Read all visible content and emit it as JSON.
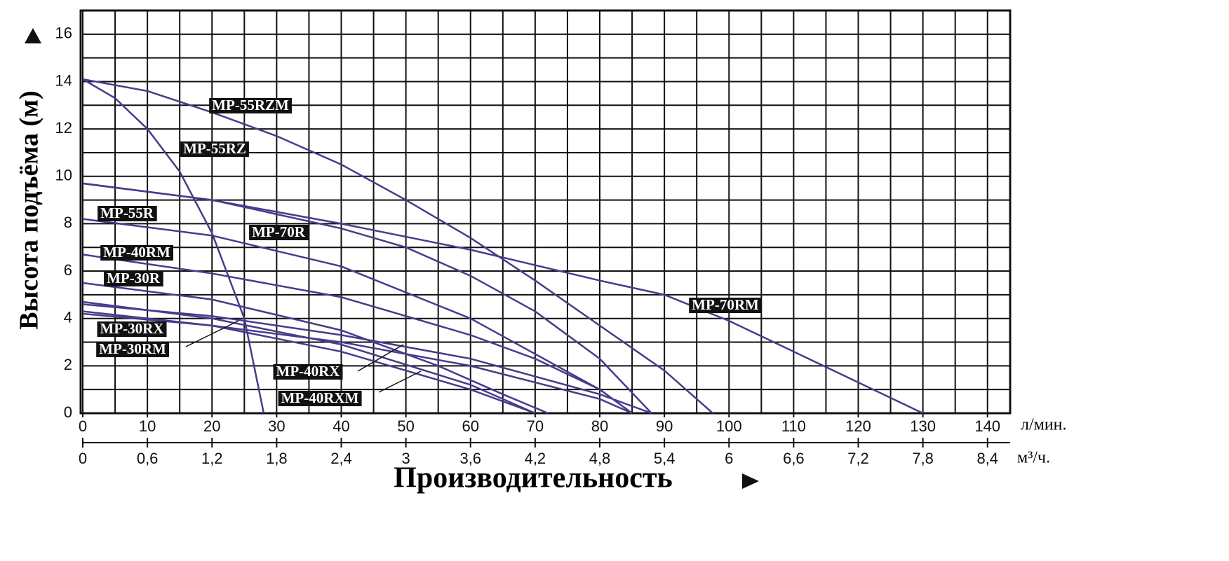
{
  "chart_data": {
    "type": "line",
    "y_label": "Высота подъёма (м)",
    "x_label": "Производительность",
    "x_unit": "л/мин.",
    "x2_unit": "м³/ч.",
    "xlim": [
      0,
      143.5
    ],
    "xticks": [
      0,
      10,
      20,
      30,
      40,
      50,
      60,
      70,
      80,
      90,
      100,
      110,
      120,
      130,
      140
    ],
    "x2lim": [
      0,
      8.61
    ],
    "x2ticks": [
      0,
      {
        "value": 0.6,
        "label": "0,6"
      },
      {
        "value": 1.2,
        "label": "1,2"
      },
      {
        "value": 1.8,
        "label": "1,8"
      },
      {
        "value": 2.4,
        "label": "2,4"
      },
      3,
      {
        "value": 3.6,
        "label": "3,6"
      },
      {
        "value": 4.2,
        "label": "4,2"
      },
      {
        "value": 4.8,
        "label": "4,8"
      },
      {
        "value": 5.4,
        "label": "5,4"
      },
      6,
      {
        "value": 6.6,
        "label": "6,6"
      },
      {
        "value": 7.2,
        "label": "7,2"
      },
      {
        "value": 7.8,
        "label": "7,8"
      },
      {
        "value": 8.4,
        "label": "8,4"
      }
    ],
    "ylim": [
      0,
      17
    ],
    "yticks": [
      0,
      2,
      4,
      6,
      8,
      10,
      12,
      14,
      16
    ],
    "grid": true,
    "x_grid_step": 5,
    "y_grid_step": 1,
    "series": [
      {
        "name": "MP-55RZM",
        "color": "#4b3a8c",
        "x": [
          0,
          10,
          20,
          30,
          40,
          50,
          60,
          70,
          80,
          90,
          97.5
        ],
        "values": [
          14.1,
          13.6,
          12.7,
          11.7,
          10.5,
          9.0,
          7.4,
          5.6,
          3.7,
          1.8,
          0
        ]
      },
      {
        "name": "MP-55RZ",
        "color": "#4b3a8c",
        "x": [
          0,
          5,
          10,
          15,
          20,
          25,
          28
        ],
        "values": [
          14.1,
          13.3,
          12.0,
          10.2,
          7.6,
          4.0,
          0
        ]
      },
      {
        "name": "MP-55R",
        "color": "#4b3a8c",
        "x": [
          0,
          20,
          40,
          60,
          70,
          80,
          85
        ],
        "values": [
          8.2,
          7.5,
          6.2,
          4.0,
          2.5,
          1.0,
          0
        ]
      },
      {
        "name": "MP-70R",
        "color": "#4b3a8c",
        "x": [
          0,
          20,
          40,
          50,
          60,
          70,
          80,
          88
        ],
        "values": [
          9.7,
          9.0,
          7.8,
          7.0,
          5.8,
          4.3,
          2.3,
          0
        ]
      },
      {
        "name": "MP-40RM",
        "color": "#4b3a8c",
        "x": [
          0,
          20,
          40,
          60,
          70,
          80,
          85
        ],
        "values": [
          6.7,
          5.9,
          4.9,
          3.3,
          2.3,
          1.0,
          0
        ]
      },
      {
        "name": "MP-30R",
        "color": "#4b3a8c",
        "x": [
          0,
          20,
          40,
          55,
          65,
          72
        ],
        "values": [
          5.5,
          4.8,
          3.5,
          2.0,
          0.8,
          0
        ]
      },
      {
        "name": "MP-30RX",
        "color": "#4b3a8c",
        "x": [
          0,
          20,
          40,
          60,
          70
        ],
        "values": [
          4.7,
          4.0,
          2.9,
          1.2,
          0
        ]
      },
      {
        "name": "MP-30RM",
        "color": "#4b3a8c",
        "x": [
          0,
          20,
          40,
          60,
          70
        ],
        "values": [
          4.3,
          3.7,
          2.6,
          1.0,
          0
        ]
      },
      {
        "name": "MP-40RX",
        "color": "#4b3a8c",
        "x": [
          0,
          20,
          40,
          60,
          80,
          88
        ],
        "values": [
          4.6,
          4.1,
          3.3,
          2.3,
          0.8,
          0
        ]
      },
      {
        "name": "MP-40RXM",
        "color": "#4b3a8c",
        "x": [
          0,
          20,
          40,
          60,
          80,
          85
        ],
        "values": [
          4.2,
          3.7,
          3.0,
          2.0,
          0.6,
          0
        ]
      },
      {
        "name": "MP-70RM",
        "color": "#4b3a8c",
        "x": [
          0,
          20,
          40,
          60,
          80,
          90,
          100,
          110,
          120,
          130
        ],
        "values": [
          9.7,
          9.0,
          8.0,
          6.9,
          5.6,
          5.0,
          3.9,
          2.6,
          1.3,
          0
        ]
      }
    ]
  }
}
